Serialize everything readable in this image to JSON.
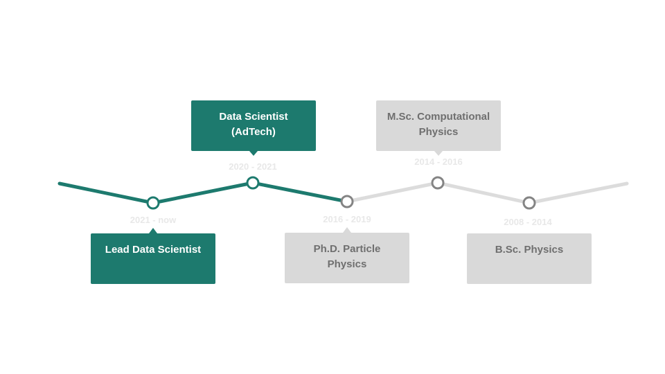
{
  "colors": {
    "active": "#1d7a6e",
    "inactive_line": "#dcdcdc",
    "inactive_card": "#d9d9d9",
    "inactive_text": "#6f6f6f",
    "inactive_marker": "#848484",
    "date_text": "#e8e8e8",
    "card_text_active": "#ffffff",
    "background": "#ffffff"
  },
  "milestones": [
    {
      "id": "lead-data-scientist",
      "title_lines": [
        "Lead Data Scientist"
      ],
      "dates": "2021 -  now",
      "status": "active"
    },
    {
      "id": "data-scientist-adtech",
      "title_lines": [
        "Data Scientist",
        "(AdTech)"
      ],
      "dates": "2020 - 2021",
      "status": "active"
    },
    {
      "id": "phd-particle-physics",
      "title_lines": [
        "Ph.D. Particle",
        "Physics"
      ],
      "dates": "2016 - 2019",
      "status": "inactive"
    },
    {
      "id": "msc-computational-physics",
      "title_lines": [
        "M.Sc. Computational",
        "Physics"
      ],
      "dates": "2014 - 2016",
      "status": "inactive"
    },
    {
      "id": "bsc-physics",
      "title_lines": [
        "B.Sc. Physics"
      ],
      "dates": "2008 - 2014",
      "status": "inactive"
    }
  ]
}
